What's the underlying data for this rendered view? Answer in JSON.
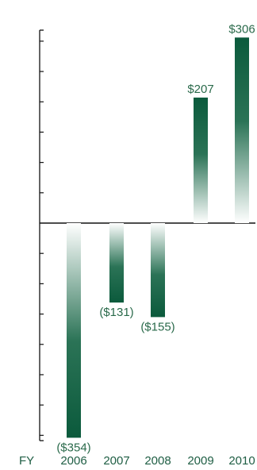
{
  "chart_data": {
    "type": "bar",
    "categories": [
      "2006",
      "2007",
      "2008",
      "2009",
      "2010"
    ],
    "values": [
      -354,
      -131,
      -155,
      207,
      306
    ],
    "value_labels": [
      "($354)",
      "($131)",
      "($155)",
      "$207",
      "$306"
    ],
    "x_axis_prefix": "FY",
    "title": "",
    "xlabel": "",
    "ylabel": "",
    "ylim": [
      -400,
      350
    ],
    "grid": false,
    "legend": "none"
  },
  "colors": {
    "bar_dark": "#0b5a3c",
    "bar_light": "#ffffff",
    "axis": "#111111",
    "label_text": "#2a6a4b",
    "tick_text": "#1f5e44"
  }
}
